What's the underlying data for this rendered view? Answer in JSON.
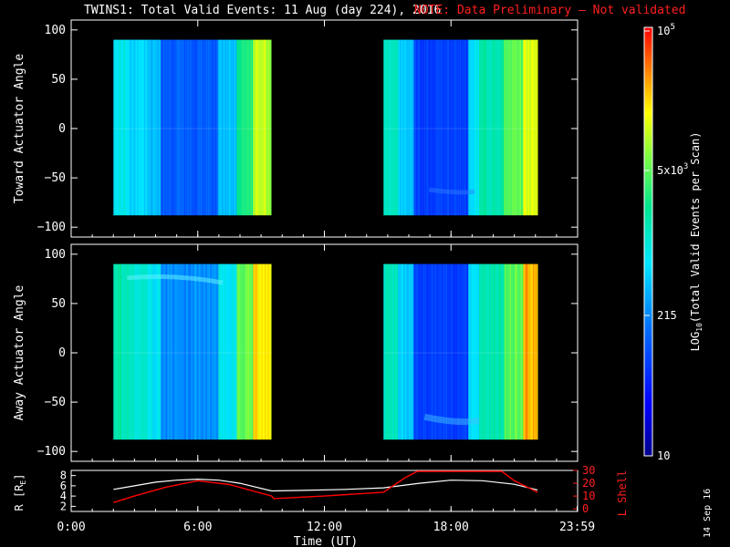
{
  "title": "TWINS1: Total Valid Events: 11 Aug (day 224), 2016",
  "note": "NOTE: Data Preliminary — Not validated",
  "date_stamp": "14 Sep 16",
  "colors": {
    "red_note": "#ff2020",
    "orbit_r": "#ffffff",
    "orbit_l": "#ff0000",
    "background": "#000000"
  },
  "chart_data": [
    {
      "type": "heatmap",
      "ylabel": "Toward Actuator Angle",
      "ylim": [
        -110,
        110
      ],
      "yticks": [
        "100",
        "50",
        "0",
        "−50",
        "−100"
      ],
      "xlim_hours": [
        0,
        24
      ],
      "data_blocks_hours": [
        [
          2.0,
          9.5
        ],
        [
          14.8,
          22.1
        ]
      ],
      "angle_range": [
        -88,
        90
      ]
    },
    {
      "type": "heatmap",
      "ylabel": "Away Actuator Angle",
      "ylim": [
        -110,
        110
      ],
      "yticks": [
        "100",
        "50",
        "0",
        "−50",
        "−100"
      ],
      "xlim_hours": [
        0,
        24
      ],
      "data_blocks_hours": [
        [
          2.0,
          9.5
        ],
        [
          14.8,
          22.1
        ]
      ],
      "angle_range": [
        -88,
        90
      ]
    },
    {
      "type": "line",
      "ylabel_left": "R [R",
      "ylabel_left_sub": "E",
      "ylabel_left_end": "]",
      "ylabel_right": "L Shell",
      "yticks_left": [
        "8",
        "6",
        "4",
        "2"
      ],
      "yticks_right": [
        "30",
        "20",
        "10",
        "0"
      ],
      "xlabel": "Time (UT)",
      "xticks": [
        "0:00",
        "6:00",
        "12:00",
        "18:00",
        "23:59"
      ],
      "series": [
        {
          "x": [
            2.0,
            3.0,
            4.0,
            5.0,
            6.0,
            7.0,
            8.0,
            9.5,
            11.0,
            13.0,
            14.8,
            16.5,
            18.0,
            19.5,
            21.0,
            22.1
          ],
          "y": [
            5.3,
            6.0,
            6.7,
            7.1,
            7.3,
            7.1,
            6.5,
            5.0,
            5.1,
            5.3,
            5.6,
            6.5,
            7.1,
            7.0,
            6.3,
            5.2
          ]
        },
        {
          "x": [
            2.0,
            3.0,
            4.5,
            6.0,
            7.5,
            9.5,
            9.6,
            12.0,
            14.8,
            15.8,
            16.4,
            20.4,
            21.0,
            22.1
          ],
          "y": [
            5,
            10,
            17,
            22,
            19,
            10,
            8,
            10,
            13,
            24,
            31,
            31,
            22,
            13
          ]
        }
      ]
    }
  ],
  "colorbar": {
    "label": "LOG",
    "label_sub": "10",
    "label_end": "(Total Valid Events per Scan)",
    "ticks": [
      {
        "base": "10",
        "sup": "5"
      },
      {
        "base": "5x10",
        "sup": "3"
      },
      {
        "base": "215",
        "sup": ""
      },
      {
        "base": "10",
        "sup": ""
      }
    ]
  }
}
